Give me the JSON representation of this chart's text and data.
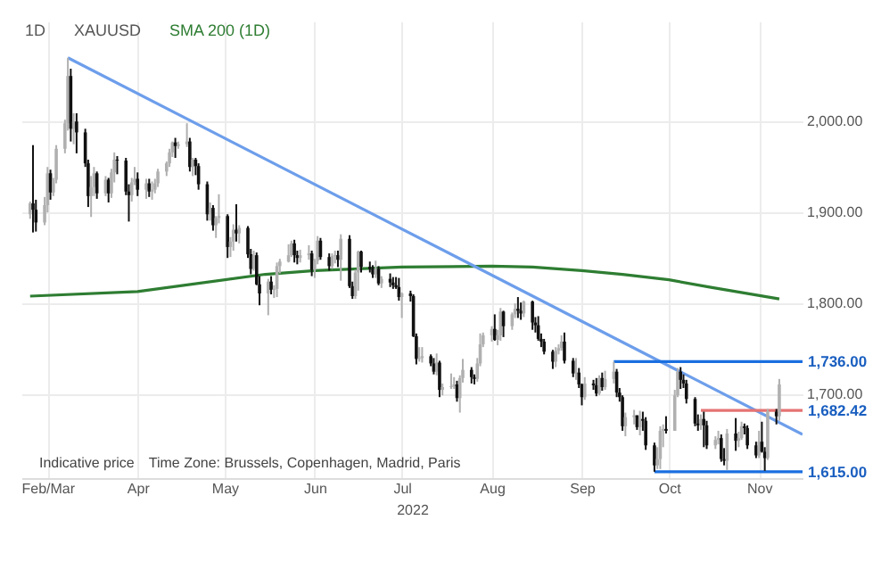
{
  "chart_data": {
    "type": "candlestick",
    "title": "XAUUSD",
    "subtitle": "1D",
    "xlabel": "2022",
    "x": [
      "2022-02-23",
      "2022-02-24",
      "2022-02-25",
      "2022-02-28",
      "2022-03-01",
      "2022-03-02",
      "2022-03-03",
      "2022-03-04",
      "2022-03-07",
      "2022-03-08",
      "2022-03-09",
      "2022-03-10",
      "2022-03-11",
      "2022-03-14",
      "2022-03-15",
      "2022-03-16",
      "2022-03-17",
      "2022-03-18",
      "2022-03-21",
      "2022-03-22",
      "2022-03-23",
      "2022-03-24",
      "2022-03-25",
      "2022-03-28",
      "2022-03-29",
      "2022-03-30",
      "2022-03-31",
      "2022-04-01",
      "2022-04-04",
      "2022-04-05",
      "2022-04-06",
      "2022-04-07",
      "2022-04-08",
      "2022-04-11",
      "2022-04-12",
      "2022-04-13",
      "2022-04-14",
      "2022-04-15",
      "2022-04-18",
      "2022-04-19",
      "2022-04-20",
      "2022-04-21",
      "2022-04-22",
      "2022-04-25",
      "2022-04-26",
      "2022-04-27",
      "2022-04-28",
      "2022-04-29",
      "2022-05-02",
      "2022-05-03",
      "2022-05-04",
      "2022-05-05",
      "2022-05-06",
      "2022-05-09",
      "2022-05-10",
      "2022-05-11",
      "2022-05-12",
      "2022-05-13",
      "2022-05-16",
      "2022-05-17",
      "2022-05-18",
      "2022-05-19",
      "2022-05-20",
      "2022-05-23",
      "2022-05-24",
      "2022-05-25",
      "2022-05-26",
      "2022-05-27",
      "2022-05-30",
      "2022-05-31",
      "2022-06-01",
      "2022-06-02",
      "2022-06-03",
      "2022-06-06",
      "2022-06-07",
      "2022-06-08",
      "2022-06-09",
      "2022-06-10",
      "2022-06-13",
      "2022-06-14",
      "2022-06-15",
      "2022-06-16",
      "2022-06-17",
      "2022-06-20",
      "2022-06-21",
      "2022-06-22",
      "2022-06-23",
      "2022-06-24",
      "2022-06-27",
      "2022-06-28",
      "2022-06-29",
      "2022-06-30",
      "2022-07-01",
      "2022-07-04",
      "2022-07-05",
      "2022-07-06",
      "2022-07-07",
      "2022-07-08",
      "2022-07-11",
      "2022-07-12",
      "2022-07-13",
      "2022-07-14",
      "2022-07-15",
      "2022-07-18",
      "2022-07-19",
      "2022-07-20",
      "2022-07-21",
      "2022-07-22",
      "2022-07-25",
      "2022-07-26",
      "2022-07-27",
      "2022-07-28",
      "2022-07-29",
      "2022-08-01",
      "2022-08-02",
      "2022-08-03",
      "2022-08-04",
      "2022-08-05",
      "2022-08-08",
      "2022-08-09",
      "2022-08-10",
      "2022-08-11",
      "2022-08-12",
      "2022-08-15",
      "2022-08-16",
      "2022-08-17",
      "2022-08-18",
      "2022-08-19",
      "2022-08-22",
      "2022-08-23",
      "2022-08-24",
      "2022-08-25",
      "2022-08-26",
      "2022-08-29",
      "2022-08-30",
      "2022-08-31",
      "2022-09-01",
      "2022-09-02",
      "2022-09-05",
      "2022-09-06",
      "2022-09-07",
      "2022-09-08",
      "2022-09-09",
      "2022-09-12",
      "2022-09-13",
      "2022-09-14",
      "2022-09-15",
      "2022-09-16",
      "2022-09-19",
      "2022-09-20",
      "2022-09-21",
      "2022-09-22",
      "2022-09-23",
      "2022-09-26",
      "2022-09-27",
      "2022-09-28",
      "2022-09-29",
      "2022-09-30",
      "2022-10-03",
      "2022-10-04",
      "2022-10-05",
      "2022-10-06",
      "2022-10-07",
      "2022-10-10",
      "2022-10-11",
      "2022-10-12",
      "2022-10-13",
      "2022-10-14",
      "2022-10-17",
      "2022-10-18",
      "2022-10-19",
      "2022-10-20",
      "2022-10-21",
      "2022-10-24",
      "2022-10-25",
      "2022-10-26",
      "2022-10-27",
      "2022-10-28",
      "2022-10-31",
      "2022-11-01",
      "2022-11-02",
      "2022-11-03",
      "2022-11-04",
      "2022-11-07",
      "2022-11-08"
    ],
    "ohlc": [
      [
        1898,
        1912,
        1893,
        1910
      ],
      [
        1910,
        1974,
        1878,
        1903
      ],
      [
        1903,
        1914,
        1879,
        1889
      ],
      [
        1889,
        1917,
        1886,
        1908
      ],
      [
        1908,
        1950,
        1900,
        1943
      ],
      [
        1943,
        1947,
        1914,
        1922
      ],
      [
        1922,
        1938,
        1918,
        1936
      ],
      [
        1936,
        1974,
        1932,
        1970
      ],
      [
        1970,
        2002,
        1965,
        1998
      ],
      [
        1998,
        2070,
        1990,
        2050
      ],
      [
        2050,
        2058,
        1978,
        1992
      ],
      [
        1992,
        2009,
        1975,
        2000
      ],
      [
        2000,
        2009,
        1965,
        1988
      ],
      [
        1988,
        1992,
        1950,
        1954
      ],
      [
        1954,
        1958,
        1906,
        1918
      ],
      [
        1918,
        1940,
        1895,
        1928
      ],
      [
        1928,
        1950,
        1918,
        1943
      ],
      [
        1943,
        1945,
        1915,
        1921
      ],
      [
        1921,
        1940,
        1918,
        1936
      ],
      [
        1936,
        1938,
        1911,
        1921
      ],
      [
        1921,
        1948,
        1916,
        1944
      ],
      [
        1944,
        1966,
        1933,
        1958
      ],
      [
        1958,
        1962,
        1942,
        1957
      ],
      [
        1957,
        1960,
        1919,
        1923
      ],
      [
        1923,
        1931,
        1890,
        1919
      ],
      [
        1919,
        1938,
        1912,
        1933
      ],
      [
        1933,
        1950,
        1930,
        1937
      ],
      [
        1937,
        1944,
        1918,
        1925
      ],
      [
        1925,
        1937,
        1915,
        1932
      ],
      [
        1932,
        1937,
        1917,
        1923
      ],
      [
        1923,
        1934,
        1914,
        1925
      ],
      [
        1925,
        1937,
        1921,
        1932
      ],
      [
        1932,
        1948,
        1928,
        1945
      ],
      [
        1945,
        1956,
        1940,
        1954
      ],
      [
        1954,
        1970,
        1950,
        1966
      ],
      [
        1966,
        1978,
        1961,
        1977
      ],
      [
        1977,
        1982,
        1960,
        1973
      ],
      [
        1973,
        1978,
        1970,
        1975
      ],
      [
        1975,
        1998,
        1972,
        1978
      ],
      [
        1978,
        1982,
        1945,
        1950
      ],
      [
        1950,
        1960,
        1940,
        1958
      ],
      [
        1958,
        1960,
        1941,
        1951
      ],
      [
        1951,
        1954,
        1925,
        1931
      ],
      [
        1931,
        1934,
        1891,
        1898
      ],
      [
        1898,
        1911,
        1891,
        1905
      ],
      [
        1905,
        1908,
        1880,
        1886
      ],
      [
        1886,
        1896,
        1872,
        1894
      ],
      [
        1894,
        1920,
        1888,
        1896
      ],
      [
        1896,
        1898,
        1850,
        1862
      ],
      [
        1862,
        1873,
        1851,
        1868
      ],
      [
        1868,
        1887,
        1858,
        1881
      ],
      [
        1881,
        1909,
        1868,
        1877
      ],
      [
        1877,
        1886,
        1866,
        1883
      ],
      [
        1883,
        1885,
        1850,
        1854
      ],
      [
        1854,
        1860,
        1832,
        1838
      ],
      [
        1838,
        1858,
        1836,
        1853
      ],
      [
        1853,
        1856,
        1820,
        1821
      ],
      [
        1821,
        1830,
        1798,
        1811
      ],
      [
        1811,
        1827,
        1787,
        1824
      ],
      [
        1824,
        1830,
        1810,
        1815
      ],
      [
        1815,
        1820,
        1806,
        1816
      ],
      [
        1816,
        1845,
        1807,
        1841
      ],
      [
        1841,
        1849,
        1833,
        1846
      ],
      [
        1846,
        1865,
        1845,
        1853
      ],
      [
        1853,
        1869,
        1851,
        1866
      ],
      [
        1866,
        1870,
        1845,
        1853
      ],
      [
        1853,
        1858,
        1843,
        1850
      ],
      [
        1850,
        1859,
        1845,
        1853
      ],
      [
        1853,
        1864,
        1848,
        1855
      ],
      [
        1855,
        1858,
        1830,
        1837
      ],
      [
        1837,
        1849,
        1828,
        1847
      ],
      [
        1847,
        1874,
        1843,
        1869
      ],
      [
        1869,
        1872,
        1848,
        1851
      ],
      [
        1851,
        1855,
        1836,
        1841
      ],
      [
        1841,
        1855,
        1838,
        1852
      ],
      [
        1852,
        1858,
        1844,
        1853
      ],
      [
        1853,
        1858,
        1840,
        1848
      ],
      [
        1848,
        1876,
        1825,
        1871
      ],
      [
        1871,
        1875,
        1817,
        1819
      ],
      [
        1819,
        1824,
        1805,
        1808
      ],
      [
        1808,
        1837,
        1805,
        1834
      ],
      [
        1834,
        1858,
        1814,
        1857
      ],
      [
        1857,
        1858,
        1834,
        1840
      ],
      [
        1840,
        1846,
        1834,
        1838
      ],
      [
        1838,
        1842,
        1828,
        1832
      ],
      [
        1832,
        1847,
        1828,
        1838
      ],
      [
        1838,
        1841,
        1820,
        1822
      ],
      [
        1822,
        1830,
        1817,
        1827
      ],
      [
        1827,
        1833,
        1818,
        1823
      ],
      [
        1823,
        1829,
        1816,
        1820
      ],
      [
        1820,
        1829,
        1816,
        1818
      ],
      [
        1818,
        1828,
        1803,
        1807
      ],
      [
        1807,
        1812,
        1784,
        1811
      ],
      [
        1811,
        1814,
        1802,
        1808
      ],
      [
        1808,
        1810,
        1763,
        1764
      ],
      [
        1764,
        1767,
        1733,
        1739
      ],
      [
        1739,
        1752,
        1736,
        1740
      ],
      [
        1740,
        1752,
        1735,
        1742
      ],
      [
        1742,
        1744,
        1731,
        1734
      ],
      [
        1734,
        1740,
        1722,
        1725
      ],
      [
        1725,
        1745,
        1721,
        1735
      ],
      [
        1735,
        1737,
        1697,
        1705
      ],
      [
        1705,
        1712,
        1699,
        1708
      ],
      [
        1708,
        1723,
        1706,
        1709
      ],
      [
        1709,
        1719,
        1706,
        1711
      ],
      [
        1711,
        1715,
        1692,
        1696
      ],
      [
        1696,
        1721,
        1680,
        1718
      ],
      [
        1718,
        1739,
        1713,
        1727
      ],
      [
        1727,
        1730,
        1712,
        1719
      ],
      [
        1719,
        1722,
        1711,
        1717
      ],
      [
        1717,
        1740,
        1714,
        1734
      ],
      [
        1734,
        1767,
        1731,
        1755
      ],
      [
        1755,
        1768,
        1752,
        1765
      ],
      [
        1765,
        1775,
        1758,
        1772
      ],
      [
        1772,
        1788,
        1759,
        1760
      ],
      [
        1760,
        1771,
        1754,
        1765
      ],
      [
        1765,
        1795,
        1759,
        1791
      ],
      [
        1791,
        1792,
        1763,
        1775
      ],
      [
        1775,
        1790,
        1771,
        1788
      ],
      [
        1788,
        1800,
        1784,
        1794
      ],
      [
        1794,
        1807,
        1784,
        1792
      ],
      [
        1792,
        1801,
        1782,
        1789
      ],
      [
        1789,
        1803,
        1785,
        1802
      ],
      [
        1802,
        1803,
        1771,
        1779
      ],
      [
        1779,
        1785,
        1768,
        1776
      ],
      [
        1776,
        1786,
        1759,
        1761
      ],
      [
        1761,
        1767,
        1752,
        1758
      ],
      [
        1758,
        1761,
        1744,
        1747
      ],
      [
        1747,
        1749,
        1728,
        1736
      ],
      [
        1736,
        1752,
        1730,
        1748
      ],
      [
        1748,
        1755,
        1744,
        1751
      ],
      [
        1751,
        1765,
        1748,
        1758
      ],
      [
        1758,
        1768,
        1734,
        1737
      ],
      [
        1737,
        1740,
        1719,
        1723
      ],
      [
        1723,
        1740,
        1716,
        1724
      ],
      [
        1724,
        1729,
        1707,
        1711
      ],
      [
        1711,
        1712,
        1688,
        1697
      ],
      [
        1697,
        1719,
        1694,
        1712
      ],
      [
        1712,
        1716,
        1705,
        1710
      ],
      [
        1710,
        1718,
        1698,
        1701
      ],
      [
        1701,
        1721,
        1699,
        1718
      ],
      [
        1718,
        1724,
        1704,
        1708
      ],
      [
        1708,
        1726,
        1705,
        1717
      ],
      [
        1717,
        1736,
        1712,
        1725
      ],
      [
        1725,
        1728,
        1697,
        1702
      ],
      [
        1702,
        1707,
        1692,
        1697
      ],
      [
        1697,
        1699,
        1660,
        1665
      ],
      [
        1665,
        1680,
        1654,
        1675
      ],
      [
        1675,
        1683,
        1667,
        1677
      ],
      [
        1677,
        1677,
        1661,
        1664
      ],
      [
        1664,
        1682,
        1655,
        1673
      ],
      [
        1673,
        1681,
        1660,
        1671
      ],
      [
        1671,
        1675,
        1639,
        1644
      ],
      [
        1644,
        1647,
        1615,
        1622
      ],
      [
        1622,
        1642,
        1618,
        1629
      ],
      [
        1629,
        1665,
        1618,
        1660
      ],
      [
        1660,
        1667,
        1642,
        1662
      ],
      [
        1662,
        1676,
        1657,
        1660
      ],
      [
        1660,
        1705,
        1660,
        1699
      ],
      [
        1699,
        1729,
        1697,
        1725
      ],
      [
        1725,
        1730,
        1706,
        1716
      ],
      [
        1716,
        1722,
        1707,
        1712
      ],
      [
        1712,
        1716,
        1690,
        1695
      ],
      [
        1695,
        1697,
        1665,
        1668
      ],
      [
        1668,
        1678,
        1660,
        1666
      ],
      [
        1666,
        1678,
        1661,
        1673
      ],
      [
        1673,
        1681,
        1642,
        1666
      ],
      [
        1666,
        1671,
        1640,
        1644
      ],
      [
        1644,
        1654,
        1640,
        1650
      ],
      [
        1650,
        1660,
        1645,
        1652
      ],
      [
        1652,
        1656,
        1626,
        1629
      ],
      [
        1629,
        1641,
        1622,
        1627
      ],
      [
        1627,
        1662,
        1617,
        1657
      ],
      [
        1657,
        1674,
        1638,
        1649
      ],
      [
        1649,
        1659,
        1642,
        1652
      ],
      [
        1652,
        1670,
        1650,
        1665
      ],
      [
        1665,
        1668,
        1656,
        1663
      ],
      [
        1663,
        1666,
        1640,
        1644
      ],
      [
        1644,
        1648,
        1630,
        1633
      ],
      [
        1633,
        1660,
        1630,
        1648
      ],
      [
        1648,
        1670,
        1636,
        1637
      ],
      [
        1637,
        1642,
        1616,
        1630
      ],
      [
        1630,
        1684,
        1628,
        1681
      ],
      [
        1681,
        1684,
        1667,
        1676
      ],
      [
        1676,
        1717,
        1671,
        1711
      ]
    ],
    "series": [
      {
        "type": "line",
        "name": "SMA 200 (1D)",
        "color": "#2e7d32",
        "x": [
          "2022-02-23",
          "2022-04-01",
          "2022-05-15",
          "2022-06-01",
          "2022-07-01",
          "2022-08-01",
          "2022-08-15",
          "2022-09-01",
          "2022-09-15",
          "2022-10-01",
          "2022-10-15",
          "2022-11-08"
        ],
        "values": [
          1808,
          1813,
          1832,
          1836,
          1840,
          1841,
          1840,
          1836,
          1832,
          1826,
          1818,
          1805
        ]
      },
      {
        "type": "line",
        "color": "#6d9eeb",
        "x": [
          "2022-03-08",
          "2022-11-16"
        ],
        "values": [
          2070,
          1656
        ]
      },
      {
        "type": "line",
        "color": "#1a6fe0",
        "x": [
          "2022-09-12",
          "2022-11-16"
        ],
        "values": [
          1736,
          1736
        ]
      },
      {
        "type": "line",
        "color": "#e57373",
        "x": [
          "2022-10-12",
          "2022-11-16"
        ],
        "values": [
          1682.42,
          1682.42
        ]
      },
      {
        "type": "line",
        "color": "#1a6fe0",
        "x": [
          "2022-09-26",
          "2022-11-16"
        ],
        "values": [
          1615,
          1615
        ]
      }
    ],
    "annotations": [
      {
        "text": "1,736.00",
        "x": "2022-11-16",
        "y": 1736
      },
      {
        "text": "1,682.42",
        "x": "2022-11-16",
        "y": 1682.42
      },
      {
        "text": "1,615.00",
        "x": "2022-11-16",
        "y": 1615
      },
      "Indicative price",
      "Time Zone: Brussels, Copenhagen, Madrid, Paris"
    ],
    "xlim": [
      "2022-02-20",
      "2022-11-16"
    ],
    "xticks": [
      {
        "value": "2022-03-01",
        "label": "Feb/Mar"
      },
      {
        "value": "2022-04-01",
        "label": "Apr"
      },
      {
        "value": "2022-05-01",
        "label": "May"
      },
      {
        "value": "2022-06-01",
        "label": "Jun"
      },
      {
        "value": "2022-07-01",
        "label": "Jul"
      },
      {
        "value": "2022-08-01",
        "label": "Aug"
      },
      {
        "value": "2022-09-01",
        "label": "Sep"
      },
      {
        "value": "2022-10-01",
        "label": "Oct"
      },
      {
        "value": "2022-11-01",
        "label": "Nov"
      }
    ],
    "ylim": [
      1608,
      2110
    ],
    "yticks": [
      {
        "value": 1700,
        "label": "1,700.00"
      },
      {
        "value": 1800,
        "label": "1,800.00"
      },
      {
        "value": 1900,
        "label": "1,900.00"
      },
      {
        "value": 2000,
        "label": "2,000.00"
      }
    ],
    "grid": true,
    "line_style": "solid"
  }
}
